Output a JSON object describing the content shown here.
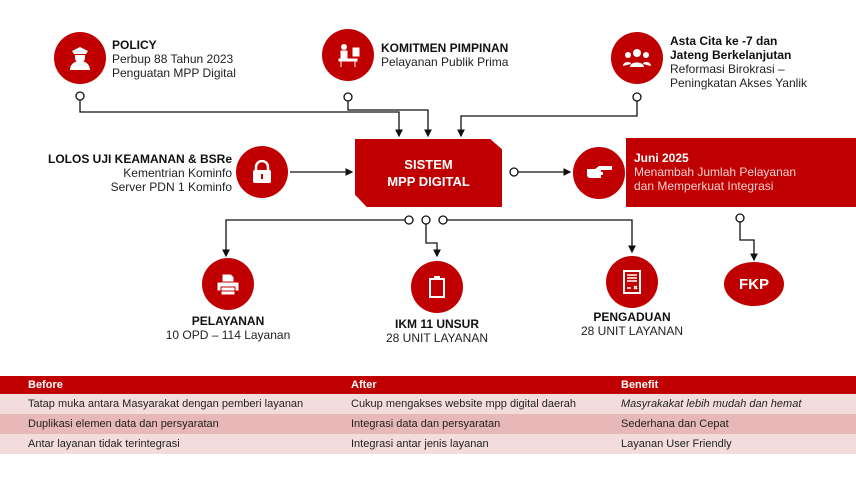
{
  "policy": {
    "title": "POLICY",
    "lines": [
      "Perbup 88 Tahun 2023",
      "Penguatan MPP Digital"
    ]
  },
  "komitmen": {
    "title": "KOMITMEN  PIMPINAN",
    "lines": [
      "Pelayanan Publik Prima"
    ]
  },
  "asta": {
    "title_lines": [
      "Asta Cita ke -7 dan",
      "Jateng Berkelanjutan"
    ],
    "lines": [
      "Reformasi Birokrasi –",
      "Peningkatan Akses Yanlik"
    ]
  },
  "lolos": {
    "title": "LOLOS UJI KEAMANAN & BSRe",
    "lines": [
      "Kementrian Kominfo",
      "Server PDN 1 Kominfo"
    ]
  },
  "sistem": {
    "lines": [
      "SISTEM",
      "MPP DIGITAL"
    ]
  },
  "juni": {
    "title": "Juni 2025",
    "lines": [
      "Menambah Jumlah Pelayanan",
      "dan Memperkuat Integrasi"
    ]
  },
  "pelayanan": {
    "title": "PELAYANAN",
    "sub": "10 OPD – 114 Layanan"
  },
  "ikm": {
    "title": "IKM 11 UNSUR",
    "sub": "28 UNIT LAYANAN"
  },
  "pengaduan": {
    "title": "PENGADUAN",
    "sub": "28 UNIT LAYANAN"
  },
  "fkp": {
    "label": "FKP"
  },
  "table": {
    "headers": [
      "Before",
      "After",
      "Benefit"
    ],
    "rows": [
      [
        "Tatap muka antara Masyarakat dengan pemberi layanan",
        "Cukup mengakses website mpp digital daerah",
        "Masyrakakat lebih mudah dan hemat"
      ],
      [
        "Duplikasi elemen data dan persyaratan",
        "Integrasi data dan persyaratan",
        "Sederhana dan Cepat"
      ],
      [
        "Antar layanan tidak terintegrasi",
        "Integrasi antar jenis layanan",
        "Layanan User Friendly"
      ]
    ]
  },
  "colors": {
    "accent": "#c00000"
  }
}
